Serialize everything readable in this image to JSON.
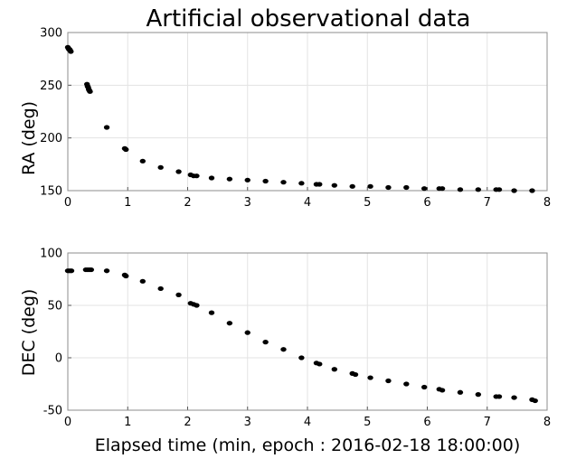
{
  "chart_data": [
    {
      "type": "scatter",
      "title": "Artificial observational data",
      "xlabel": "",
      "ylabel": "RA (deg)",
      "xlim": [
        0,
        8
      ],
      "ylim": [
        150,
        300
      ],
      "xticks": [
        "0",
        "1",
        "2",
        "3",
        "4",
        "5",
        "6",
        "7",
        "8"
      ],
      "yticks": [
        "150",
        "200",
        "250",
        "300"
      ],
      "grid": true,
      "series": [
        {
          "x": [
            0.0,
            0.01,
            0.02,
            0.03,
            0.04,
            0.05,
            0.32,
            0.33,
            0.34,
            0.35,
            0.36,
            0.37,
            0.65,
            0.95,
            0.97,
            1.25,
            1.55,
            1.85,
            2.05,
            2.1,
            2.15,
            2.4,
            2.7,
            3.0,
            3.3,
            3.6,
            3.9,
            4.15,
            4.2,
            4.45,
            4.75,
            5.05,
            5.35,
            5.65,
            5.95,
            6.2,
            6.25,
            6.55,
            6.85,
            7.15,
            7.2,
            7.45,
            7.75
          ],
          "y": [
            286,
            285,
            284,
            284,
            283,
            282,
            251,
            249,
            248,
            246,
            245,
            244,
            210,
            190,
            189,
            178,
            172,
            168,
            165,
            164,
            164,
            162,
            161,
            160,
            159,
            158,
            157,
            156,
            156,
            155,
            154,
            154,
            153,
            153,
            152,
            152,
            152,
            151,
            151,
            151,
            151,
            150,
            150
          ]
        }
      ]
    },
    {
      "type": "scatter",
      "title": "",
      "xlabel": "Elapsed time (min, epoch : 2016-02-18 18:00:00)",
      "ylabel": "DEC (deg)",
      "xlim": [
        0,
        8
      ],
      "ylim": [
        -50,
        100
      ],
      "xticks": [
        "0",
        "1",
        "2",
        "3",
        "4",
        "5",
        "6",
        "7",
        "8"
      ],
      "yticks": [
        "-50",
        "0",
        "50",
        "100"
      ],
      "grid": true,
      "series": [
        {
          "x": [
            0.0,
            0.03,
            0.06,
            0.3,
            0.33,
            0.36,
            0.39,
            0.65,
            0.95,
            0.97,
            1.25,
            1.55,
            1.85,
            2.05,
            2.1,
            2.15,
            2.4,
            2.7,
            3.0,
            3.3,
            3.6,
            3.9,
            4.15,
            4.2,
            4.45,
            4.75,
            4.8,
            5.05,
            5.35,
            5.65,
            5.95,
            6.2,
            6.25,
            6.55,
            6.85,
            7.15,
            7.2,
            7.45,
            7.75,
            7.8
          ],
          "y": [
            83,
            83,
            83,
            84,
            84,
            84,
            84,
            83,
            79,
            78,
            73,
            66,
            60,
            52,
            51,
            50,
            43,
            33,
            24,
            15,
            8,
            0,
            -5,
            -6,
            -11,
            -15,
            -16,
            -19,
            -22,
            -25,
            -28,
            -30,
            -31,
            -33,
            -35,
            -37,
            -37,
            -38,
            -40,
            -41
          ]
        }
      ]
    }
  ]
}
